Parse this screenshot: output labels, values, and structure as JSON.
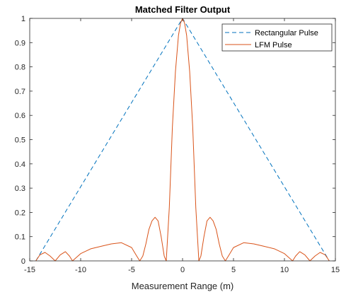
{
  "chart_data": {
    "type": "line",
    "title": "Matched Filter Output",
    "xlabel": "Measurement Range (m)",
    "ylabel": "",
    "xlim": [
      -15,
      15
    ],
    "ylim": [
      0,
      1
    ],
    "xticks": [
      -15,
      -10,
      -5,
      0,
      5,
      10,
      15
    ],
    "yticks": [
      0,
      0.1,
      0.2,
      0.3,
      0.4,
      0.5,
      0.6,
      0.7,
      0.8,
      0.9,
      1
    ],
    "xtick_labels": [
      "-15",
      "-10",
      "-5",
      "0",
      "5",
      "10",
      "15"
    ],
    "ytick_labels": [
      "0",
      "0.1",
      "0.2",
      "0.3",
      "0.4",
      "0.5",
      "0.6",
      "0.7",
      "0.8",
      "0.9",
      "1"
    ],
    "grid": false,
    "legend_position": "top-right",
    "series": [
      {
        "name": "Rectangular Pulse",
        "color": "#0072BD",
        "style": "dashed",
        "x": [
          -14.4,
          0,
          14.4
        ],
        "y": [
          0,
          1,
          0
        ]
      },
      {
        "name": "LFM Pulse",
        "color": "#D95319",
        "style": "solid",
        "x": [
          -14.4,
          -14.0,
          -13.5,
          -13.0,
          -12.5,
          -12.0,
          -11.5,
          -11.1,
          -10.8,
          -10.0,
          -9.0,
          -8.0,
          -7.0,
          -6.0,
          -5.0,
          -4.5,
          -4.2,
          -3.9,
          -3.6,
          -3.3,
          -3.0,
          -2.7,
          -2.4,
          -2.1,
          -1.8,
          -1.6,
          -1.3,
          -1.0,
          -0.7,
          -0.4,
          -0.2,
          0.0,
          0.2,
          0.4,
          0.7,
          1.0,
          1.3,
          1.6,
          1.8,
          2.1,
          2.4,
          2.7,
          3.0,
          3.3,
          3.6,
          3.9,
          4.2,
          4.5,
          5.0,
          6.0,
          7.0,
          8.0,
          9.0,
          10.0,
          10.8,
          11.1,
          11.5,
          12.0,
          12.5,
          13.0,
          13.5,
          14.0,
          14.4
        ],
        "y": [
          0.0,
          0.025,
          0.035,
          0.02,
          0.0,
          0.025,
          0.038,
          0.02,
          0.0,
          0.03,
          0.05,
          0.06,
          0.07,
          0.075,
          0.055,
          0.02,
          0.0,
          0.02,
          0.07,
          0.13,
          0.165,
          0.18,
          0.165,
          0.1,
          0.02,
          0.0,
          0.22,
          0.55,
          0.78,
          0.93,
          0.98,
          1.0,
          0.98,
          0.93,
          0.78,
          0.55,
          0.22,
          0.0,
          0.02,
          0.1,
          0.165,
          0.18,
          0.165,
          0.13,
          0.07,
          0.02,
          0.0,
          0.02,
          0.055,
          0.075,
          0.07,
          0.06,
          0.05,
          0.03,
          0.0,
          0.02,
          0.038,
          0.025,
          0.0,
          0.02,
          0.035,
          0.025,
          0.0
        ]
      }
    ]
  }
}
